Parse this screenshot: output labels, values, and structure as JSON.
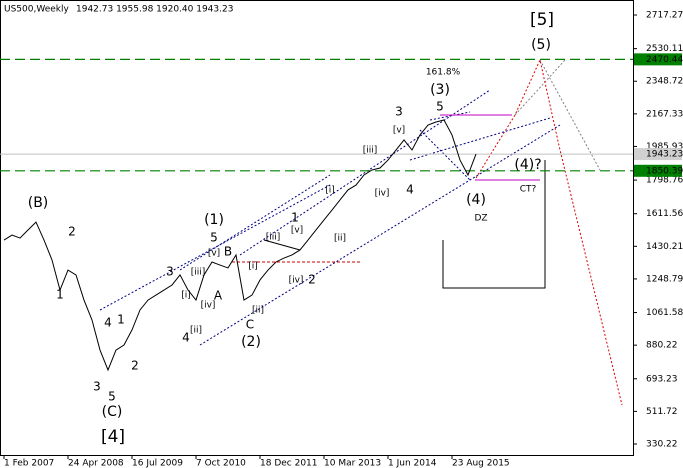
{
  "chart_data": {
    "type": "line",
    "title": "US500,Weekly",
    "ohlc": "1942.73 1955.98 1920.40 1943.23",
    "categories": [
      "1 Feb 2007",
      null,
      null,
      null,
      null,
      null,
      null,
      null,
      "24 Apr 2008",
      null,
      null,
      null,
      null,
      null,
      null,
      null,
      "16 Jul 2009",
      null,
      null,
      null,
      null,
      null,
      null,
      null,
      "7 Oct 2010",
      null,
      null,
      null,
      null,
      null,
      null,
      null,
      "18 Dec 2011",
      null,
      null,
      null,
      null,
      null,
      null,
      null,
      "10 Mar 2013",
      null,
      null,
      null,
      null,
      null,
      null,
      null,
      "1 Jun 2014",
      null,
      null,
      null,
      null,
      null,
      null,
      null,
      "23 Aug 2015",
      null,
      null,
      null
    ],
    "series": [
      {
        "name": "US500",
        "color": "#000000",
        "values": [
          1465,
          1493,
          1476,
          1521,
          1565,
          1465,
          1354,
          1187,
          1298,
          1271,
          1131,
          1020,
          853,
          742,
          853,
          881,
          965,
          1076,
          1131,
          1159,
          1187,
          1215,
          1271,
          1187,
          1131,
          1271,
          1343,
          1326,
          1310,
          1382,
          1131,
          1159,
          1243,
          1298,
          1343,
          1365,
          1382,
          1410,
          1465,
          1521,
          1577,
          1632,
          1688,
          1744,
          1771,
          1827,
          1855,
          1866,
          1910,
          1966,
          2022,
          1966,
          2050,
          2105,
          2122,
          2133,
          2050,
          1910,
          1827,
          1943.23
        ]
      }
    ],
    "ylim": [
      269.03,
      2800.73
    ],
    "yticks": [
      2717.27,
      2530.11,
      2348.72,
      2167.33,
      1985.93,
      1798.76,
      1611.56,
      1430.21,
      1248.79,
      1061.58,
      880.22,
      693.23,
      511.72,
      330.22
    ],
    "levels": [
      {
        "value": 2470.44,
        "color": "#008000",
        "kind": "dashed"
      },
      {
        "value": 1943.23,
        "color": "#c0c0c0",
        "kind": "solid"
      },
      {
        "value": 1850.39,
        "color": "#008000",
        "kind": "dashed"
      }
    ],
    "annotations": [
      "[5]",
      "(5)",
      "161.8%",
      "(3)",
      "5",
      "3",
      "[v]",
      "[iii]",
      "4",
      "[iv]",
      "[i]",
      "[ii]",
      "(4)?",
      "CT?",
      "(4)",
      "DZ",
      "(B)",
      "2",
      "1",
      "4",
      "1",
      "2",
      "3",
      "5",
      "(C)",
      "[4]",
      "(1)",
      "5",
      "B",
      "3",
      "[iii]",
      "[v]",
      "[i]",
      "[iv]",
      "A",
      "[ii]",
      "4",
      "C",
      "(2)",
      "1",
      "[v]",
      "[iii]",
      "[i]",
      "[iv]",
      "2",
      "[ii]"
    ]
  }
}
